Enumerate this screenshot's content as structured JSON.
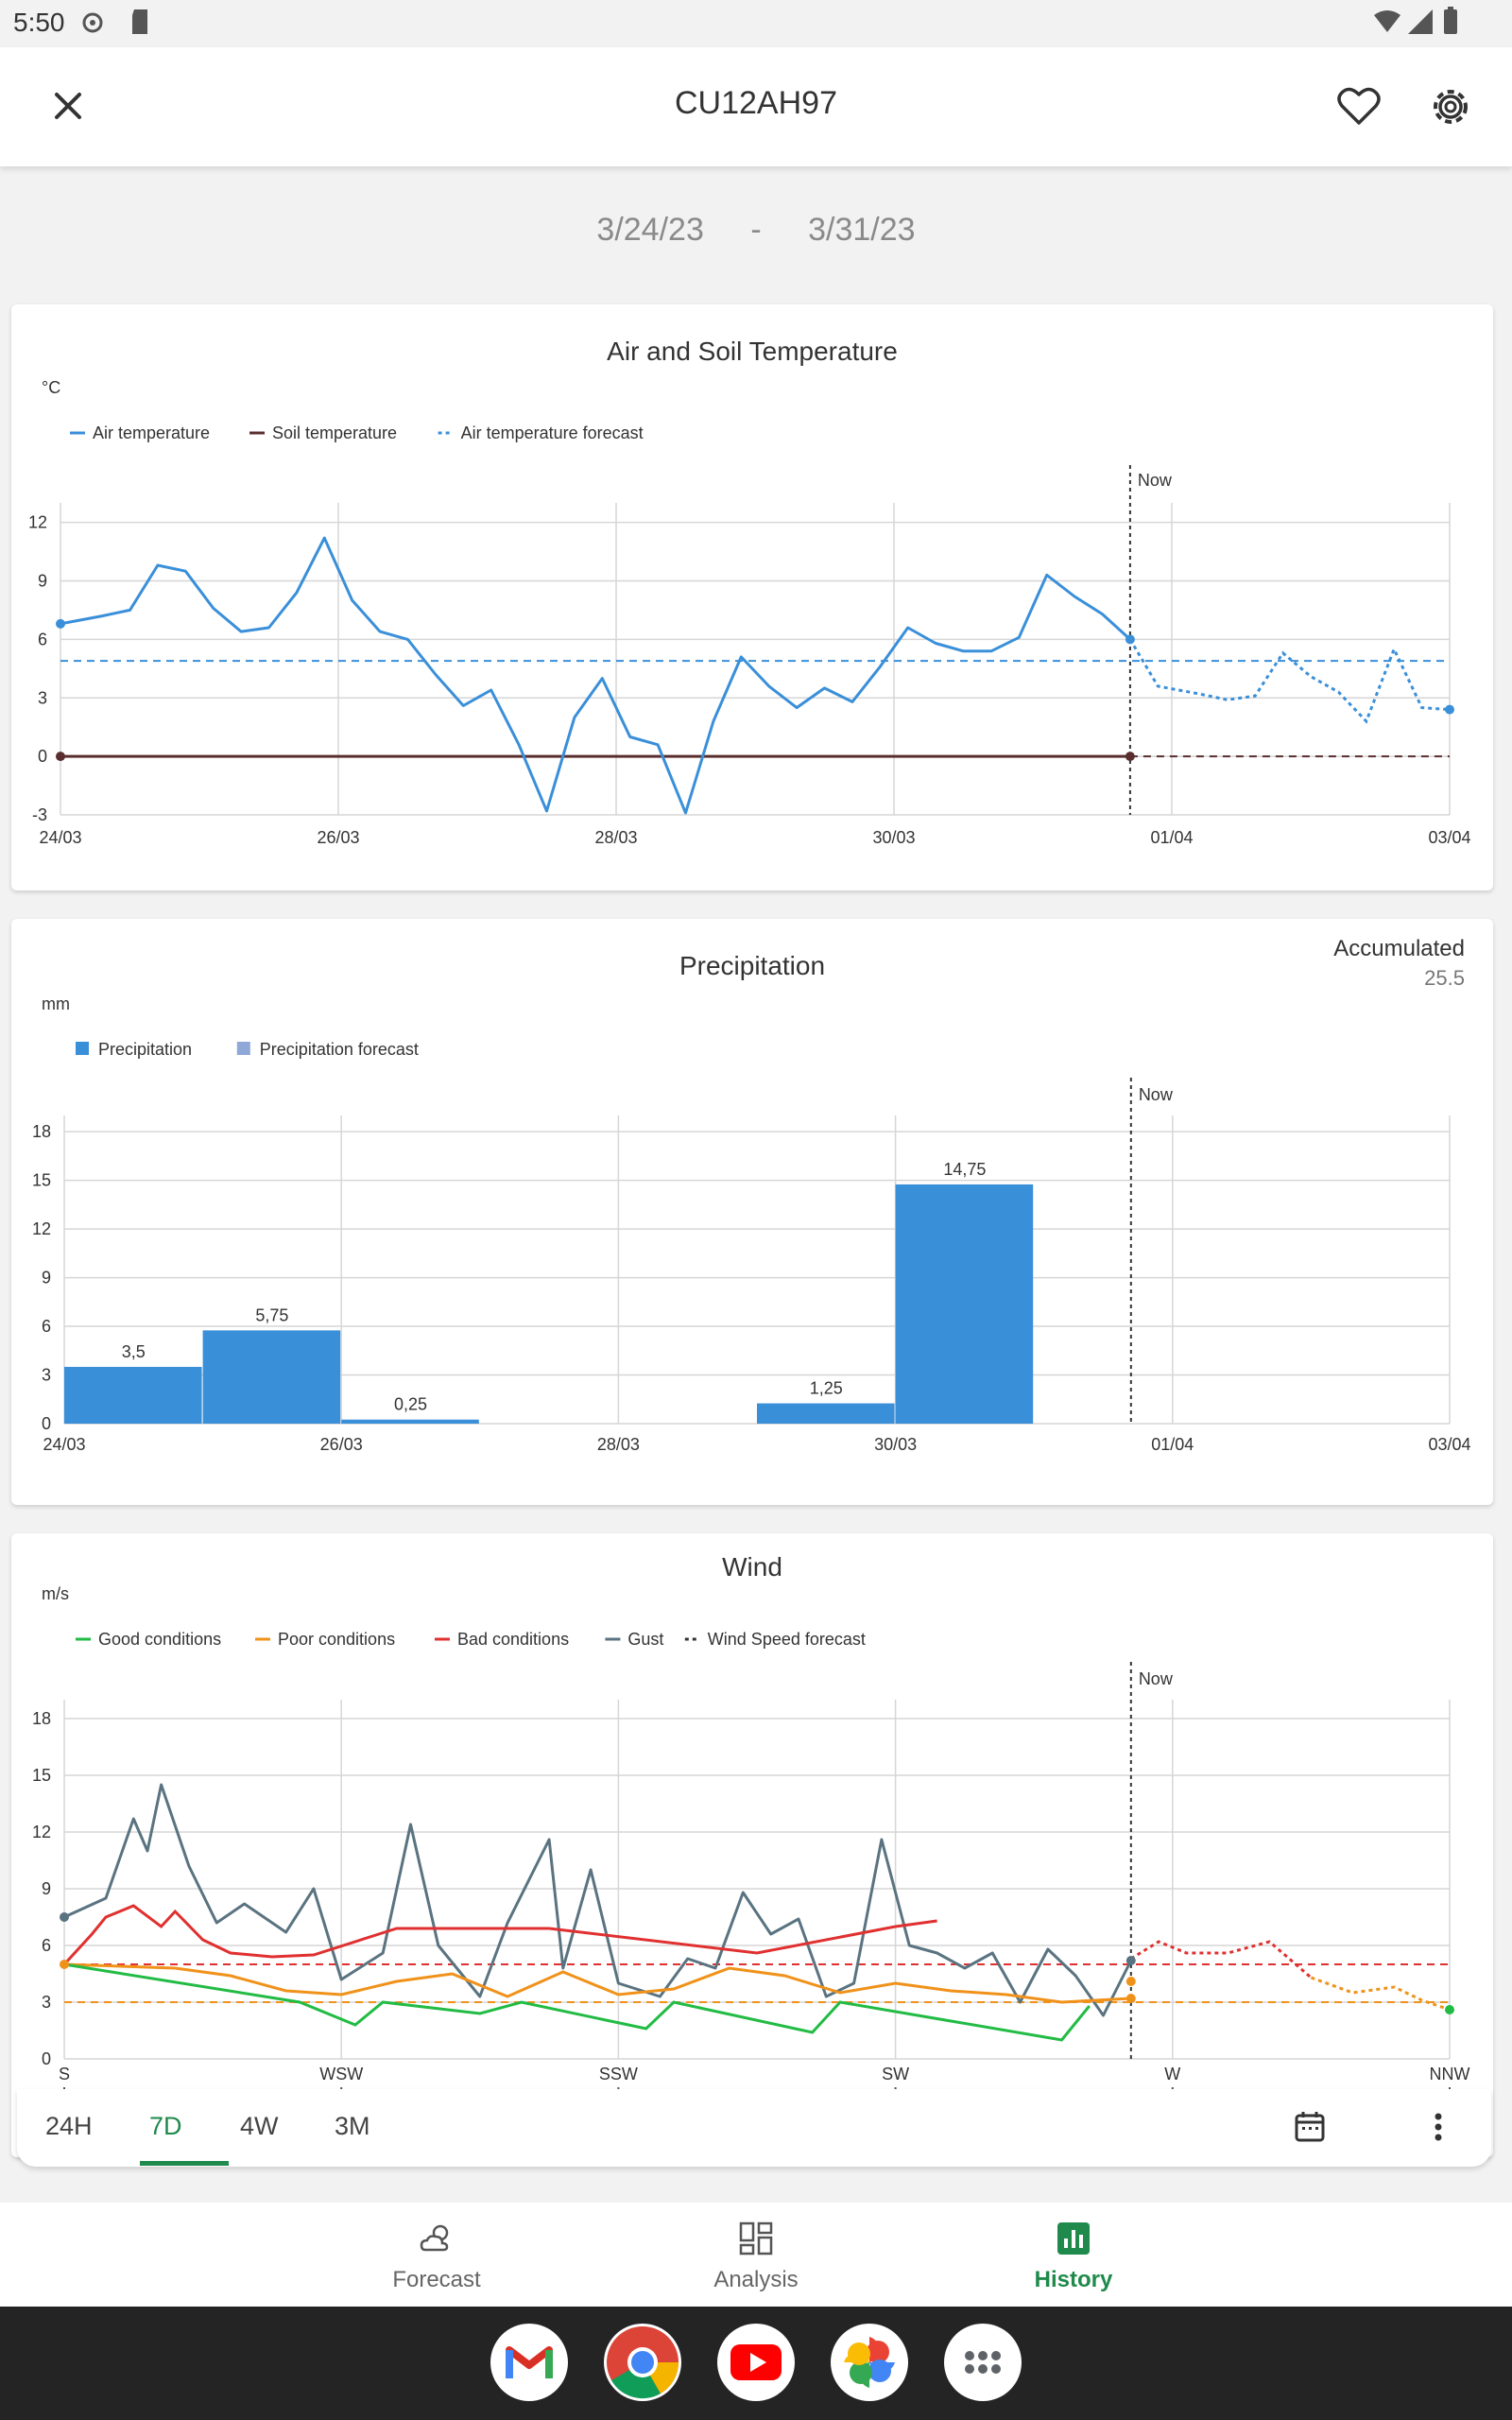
{
  "status_bar": {
    "time": "5:50"
  },
  "header": {
    "title": "CU12AH97"
  },
  "date_range": {
    "start": "3/24/23",
    "separator": "-",
    "end": "3/31/23"
  },
  "colors": {
    "accent": "#1f8a4c",
    "series_blue": "#3a8fd9",
    "soil": "#5a2e2e",
    "good": "#22bb44",
    "poor": "#f0921a",
    "bad": "#e03030",
    "gust": "#5a7380"
  },
  "temp_card": {
    "title": "Air and Soil Temperature",
    "unit": "°C",
    "legend": [
      "Air temperature",
      "Soil temperature",
      "Air temperature forecast"
    ],
    "now_label": "Now"
  },
  "precip_card": {
    "title": "Precipitation",
    "unit": "mm",
    "legend": [
      "Precipitation",
      "Precipitation forecast"
    ],
    "now_label": "Now",
    "accumulated_label": "Accumulated",
    "accumulated_value": "25.5"
  },
  "wind_card": {
    "title": "Wind",
    "unit": "m/s",
    "legend": [
      "Good conditions",
      "Poor conditions",
      "Bad conditions",
      "Gust",
      "Wind Speed forecast"
    ],
    "now_label": "Now"
  },
  "tabs": {
    "items": [
      "24H",
      "7D",
      "4W",
      "3M"
    ],
    "active": "7D"
  },
  "bottom_nav": {
    "items": [
      "Forecast",
      "Analysis",
      "History"
    ],
    "active": "History"
  },
  "dock_apps": [
    "gmail-icon",
    "chrome-icon",
    "youtube-icon",
    "photos-icon",
    "app-drawer-icon"
  ],
  "chart_data": [
    {
      "type": "line",
      "title": "Air and Soil Temperature",
      "ylabel": "°C",
      "ylim": [
        -3,
        13
      ],
      "yticks": [
        -3,
        0,
        3,
        6,
        9,
        12
      ],
      "xticks": [
        "24/03",
        "26/03",
        "28/03",
        "30/03",
        "01/04",
        "03/04"
      ],
      "x_unit": "days since 24/03",
      "xlim": [
        0,
        10
      ],
      "now_x": 7.7,
      "reference_line": 4.9,
      "series": [
        {
          "name": "Air temperature",
          "x": [
            0,
            0.3,
            0.5,
            0.7,
            0.9,
            1.1,
            1.3,
            1.5,
            1.7,
            1.9,
            2.1,
            2.3,
            2.5,
            2.7,
            2.9,
            3.1,
            3.3,
            3.5,
            3.7,
            3.9,
            4.1,
            4.3,
            4.5,
            4.7,
            4.9,
            5.1,
            5.3,
            5.5,
            5.7,
            5.9,
            6.1,
            6.3,
            6.5,
            6.7,
            6.9,
            7.1,
            7.3,
            7.5,
            7.7
          ],
          "y": [
            6.8,
            7.2,
            7.5,
            9.8,
            9.5,
            7.6,
            6.4,
            6.6,
            8.4,
            11.2,
            8.0,
            6.4,
            6.0,
            4.2,
            2.6,
            3.4,
            0.6,
            -2.8,
            2.0,
            4.0,
            1.0,
            0.6,
            -2.9,
            1.8,
            5.1,
            3.6,
            2.5,
            3.5,
            2.8,
            4.6,
            6.6,
            5.8,
            5.4,
            5.4,
            6.1,
            9.3,
            8.2,
            7.3,
            6.0
          ]
        },
        {
          "name": "Soil temperature",
          "x": [
            0,
            7.7
          ],
          "y": [
            0,
            0
          ]
        },
        {
          "name": "Air temperature forecast",
          "x": [
            7.7,
            7.9,
            8.2,
            8.4,
            8.6,
            8.8,
            9.0,
            9.2,
            9.4,
            9.6,
            9.8,
            10.0
          ],
          "y": [
            6.0,
            3.6,
            3.2,
            2.9,
            3.1,
            5.3,
            4.1,
            3.3,
            1.8,
            5.5,
            2.5,
            2.4
          ]
        }
      ]
    },
    {
      "type": "bar",
      "title": "Precipitation",
      "ylabel": "mm",
      "ylim": [
        0,
        19
      ],
      "yticks": [
        0,
        3,
        6,
        9,
        12,
        15,
        18
      ],
      "xticks": [
        "24/03",
        "26/03",
        "28/03",
        "30/03",
        "01/04",
        "03/04"
      ],
      "categories": [
        "24/03",
        "25/03",
        "26/03",
        "27/03",
        "28/03",
        "29/03",
        "30/03",
        "31/03"
      ],
      "values": [
        3.5,
        5.75,
        0.25,
        0,
        0,
        1.25,
        14.75,
        0
      ],
      "value_labels": [
        "3,5",
        "5,75",
        "0,25",
        "",
        "",
        "1,25",
        "14,75",
        ""
      ],
      "series_names": [
        "Precipitation",
        "Precipitation forecast"
      ]
    },
    {
      "type": "line",
      "title": "Wind",
      "ylabel": "m/s",
      "ylim": [
        0,
        19
      ],
      "yticks": [
        0,
        3,
        6,
        9,
        12,
        15,
        18
      ],
      "xticks": [
        "S",
        "WSW",
        "SSW",
        "SW",
        "W",
        "NNW"
      ],
      "x_unit": "days since 24/03",
      "xlim": [
        0,
        10
      ],
      "now_x": 7.7,
      "thresholds": [
        3,
        5
      ],
      "series": [
        {
          "name": "Gust",
          "x": [
            0,
            0.3,
            0.5,
            0.6,
            0.7,
            0.9,
            1.1,
            1.3,
            1.6,
            1.8,
            2.0,
            2.3,
            2.5,
            2.7,
            3.0,
            3.2,
            3.5,
            3.6,
            3.8,
            4.0,
            4.3,
            4.5,
            4.7,
            4.9,
            5.1,
            5.3,
            5.5,
            5.7,
            5.9,
            6.1,
            6.3,
            6.5,
            6.7,
            6.9,
            7.1,
            7.3,
            7.5,
            7.7
          ],
          "y": [
            7.5,
            8.5,
            12.7,
            11.0,
            14.5,
            10.2,
            7.2,
            8.2,
            6.7,
            9.0,
            4.2,
            5.6,
            12.4,
            6.0,
            3.3,
            7.2,
            11.6,
            4.8,
            10.0,
            4.0,
            3.3,
            5.3,
            4.8,
            8.8,
            6.6,
            7.4,
            3.3,
            4.0,
            11.6,
            6.0,
            5.6,
            4.8,
            5.6,
            3.0,
            5.8,
            4.4,
            2.3,
            5.2
          ]
        },
        {
          "name": "Good conditions",
          "x": [
            0,
            1.7,
            2.1,
            2.3,
            3.0,
            3.3,
            4.2,
            4.4,
            5.4,
            5.6,
            7.2,
            7.4
          ],
          "y": [
            5,
            3,
            1.8,
            3,
            2.4,
            3,
            1.6,
            3,
            1.4,
            3,
            1.0,
            2.8
          ]
        },
        {
          "name": "Poor conditions",
          "x": [
            0,
            0.8,
            1.2,
            1.6,
            2.0,
            2.4,
            2.8,
            3.2,
            3.6,
            4.0,
            4.4,
            4.8,
            5.2,
            5.6,
            6.0,
            6.4,
            6.8,
            7.2,
            7.7
          ],
          "y": [
            5,
            4.8,
            4.4,
            3.6,
            3.4,
            4.1,
            4.5,
            3.3,
            4.6,
            3.4,
            3.7,
            4.8,
            4.4,
            3.5,
            4.0,
            3.6,
            3.4,
            3.0,
            3.2
          ]
        },
        {
          "name": "Bad conditions",
          "x": [
            0,
            0.2,
            0.3,
            0.5,
            0.7,
            0.8,
            1.0,
            1.2,
            1.5,
            1.8,
            2.4,
            3.5,
            5.0,
            6.0,
            6.3
          ],
          "y": [
            5,
            6.6,
            7.5,
            8.1,
            7.0,
            7.8,
            6.3,
            5.6,
            5.4,
            5.5,
            6.9,
            6.9,
            5.6,
            7.0,
            7.3
          ]
        },
        {
          "name": "Wind Speed forecast",
          "x": [
            7.7,
            7.9,
            8.1,
            8.4,
            8.7,
            9.0,
            9.3,
            9.6,
            9.8,
            10.0
          ],
          "y": [
            5.3,
            6.2,
            5.6,
            5.6,
            6.2,
            4.3,
            3.5,
            3.8,
            3.1,
            2.6
          ]
        }
      ]
    }
  ]
}
